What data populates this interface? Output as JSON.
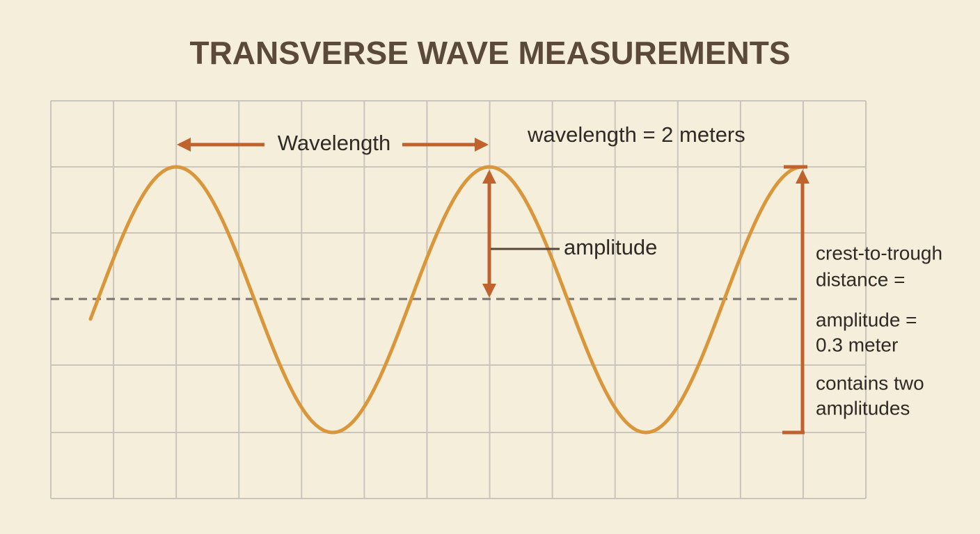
{
  "title": "TRANSVERSE WAVE MEASUREMENTS",
  "wavelength_label": "Wavelength",
  "wavelength_value": "wavelength = 2 meters",
  "amplitude_label": "amplitude",
  "side_notes": [
    "crest-to-trough",
    "distance =",
    "amplitude =",
    "0.3 meter",
    "contains two",
    "amplitudes"
  ]
}
